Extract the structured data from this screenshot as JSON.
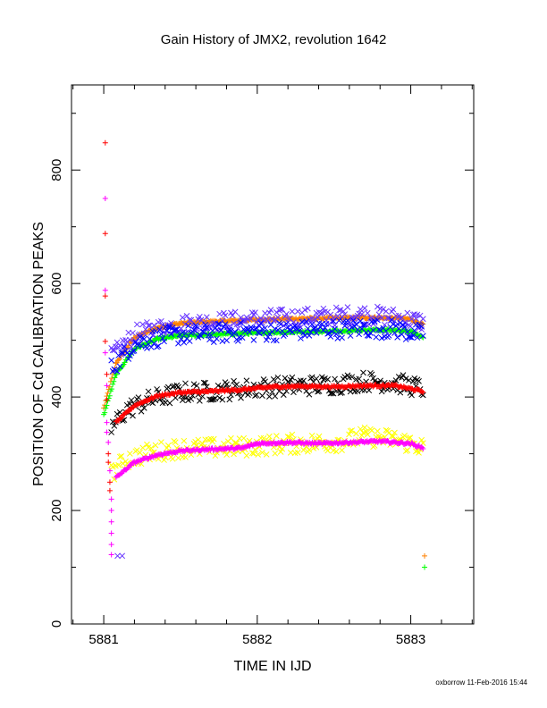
{
  "chart_data": {
    "type": "scatter",
    "title": "Gain History of JMX2, revolution 1642",
    "xlabel": "TIME IN IJD",
    "ylabel": "POSITION OF Cd CALIBRATION PEAKS",
    "xlim": [
      5880.79,
      5883.41
    ],
    "ylim": [
      0,
      950
    ],
    "x_ticks": [
      "5881",
      "5882",
      "5883"
    ],
    "y_ticks": [
      "0",
      "200",
      "400",
      "600",
      "800"
    ],
    "grid": false,
    "credit": "oxborrow 11-Feb-2016 15:44",
    "series": [
      {
        "color": "#ff8000",
        "marker": "+",
        "x": [
          5881.0,
          5881.08,
          5881.2,
          5881.35,
          5881.5,
          5881.7,
          5881.9,
          5882.1,
          5882.3,
          5882.5,
          5882.7,
          5882.9,
          5883.0,
          5883.08
        ],
        "y": [
          380,
          460,
          505,
          522,
          530,
          533,
          535,
          537,
          538,
          539,
          540,
          539,
          537,
          528
        ]
      },
      {
        "color": "#6633ff",
        "marker": "x",
        "x": [
          5881.05,
          5881.2,
          5881.35,
          5881.5,
          5881.7,
          5881.9,
          5882.1,
          5882.3,
          5882.5,
          5882.7,
          5882.9,
          5883.08
        ],
        "y": [
          470,
          510,
          520,
          528,
          532,
          535,
          538,
          540,
          542,
          545,
          540,
          532
        ]
      },
      {
        "color": "#00ff00",
        "marker": "+",
        "x": [
          5881.0,
          5881.08,
          5881.2,
          5881.35,
          5881.5,
          5881.7,
          5881.9,
          5882.1,
          5882.3,
          5882.5,
          5882.7,
          5882.9,
          5883.0,
          5883.08
        ],
        "y": [
          368,
          440,
          485,
          502,
          508,
          510,
          512,
          514,
          515,
          516,
          518,
          518,
          515,
          505
        ]
      },
      {
        "color": "#0000ff",
        "marker": "x",
        "x": [
          5881.05,
          5881.2,
          5881.35,
          5881.5,
          5881.7,
          5881.9,
          5882.1,
          5882.3,
          5882.5,
          5882.7,
          5882.9,
          5883.08
        ],
        "y": [
          450,
          495,
          505,
          510,
          512,
          515,
          516,
          518,
          520,
          522,
          520,
          510
        ]
      },
      {
        "color": "#000000",
        "marker": "x",
        "x": [
          5881.05,
          5881.15,
          5881.3,
          5881.5,
          5881.7,
          5881.9,
          5882.1,
          5882.3,
          5882.5,
          5882.7,
          5882.9,
          5883.08
        ],
        "y": [
          345,
          378,
          395,
          408,
          410,
          414,
          418,
          420,
          422,
          428,
          425,
          415
        ]
      },
      {
        "color": "#ff0000",
        "marker": "+",
        "x": [
          5881.08,
          5881.2,
          5881.35,
          5881.5,
          5881.7,
          5881.9,
          5882.1,
          5882.3,
          5882.5,
          5882.7,
          5882.9,
          5883.08
        ],
        "y": [
          355,
          385,
          402,
          408,
          410,
          413,
          418,
          419,
          418,
          420,
          420,
          410
        ]
      },
      {
        "color": "#ffff00",
        "marker": "x",
        "x": [
          5881.05,
          5881.15,
          5881.3,
          5881.5,
          5881.7,
          5881.9,
          5882.1,
          5882.3,
          5882.5,
          5882.7,
          5882.9,
          5883.08
        ],
        "y": [
          265,
          290,
          302,
          310,
          310,
          312,
          316,
          318,
          320,
          330,
          325,
          312
        ]
      },
      {
        "color": "#ff00ff",
        "marker": "+",
        "x": [
          5881.08,
          5881.2,
          5881.35,
          5881.5,
          5881.7,
          5881.9,
          5882.0,
          5882.2,
          5882.4,
          5882.6,
          5882.8,
          5883.0,
          5883.08
        ],
        "y": [
          258,
          285,
          298,
          305,
          308,
          310,
          318,
          320,
          318,
          320,
          322,
          318,
          310
        ]
      }
    ],
    "extra_points": [
      {
        "color": "#ff0000",
        "marker": "+",
        "x": 5881.01,
        "y": 848
      },
      {
        "color": "#ff00ff",
        "marker": "+",
        "x": 5881.01,
        "y": 750
      },
      {
        "color": "#ff0000",
        "marker": "+",
        "x": 5881.01,
        "y": 688
      },
      {
        "color": "#ff00ff",
        "marker": "+",
        "x": 5881.01,
        "y": 588
      },
      {
        "color": "#ff0000",
        "marker": "+",
        "x": 5881.01,
        "y": 578
      },
      {
        "color": "#ff0000",
        "marker": "+",
        "x": 5881.01,
        "y": 498
      },
      {
        "color": "#ff00ff",
        "marker": "+",
        "x": 5881.01,
        "y": 478
      },
      {
        "color": "#ff0000",
        "marker": "+",
        "x": 5881.02,
        "y": 440
      },
      {
        "color": "#ff00ff",
        "marker": "+",
        "x": 5881.02,
        "y": 420
      },
      {
        "color": "#ff0000",
        "marker": "+",
        "x": 5881.02,
        "y": 395
      },
      {
        "color": "#ff00ff",
        "marker": "+",
        "x": 5881.02,
        "y": 355
      },
      {
        "color": "#ff00ff",
        "marker": "+",
        "x": 5881.02,
        "y": 338
      },
      {
        "color": "#ff00ff",
        "marker": "+",
        "x": 5881.03,
        "y": 320
      },
      {
        "color": "#ff0000",
        "marker": "+",
        "x": 5881.03,
        "y": 300
      },
      {
        "color": "#ff0000",
        "marker": "+",
        "x": 5881.03,
        "y": 285
      },
      {
        "color": "#ff00ff",
        "marker": "+",
        "x": 5881.04,
        "y": 270
      },
      {
        "color": "#ff0000",
        "marker": "+",
        "x": 5881.04,
        "y": 250
      },
      {
        "color": "#ff0000",
        "marker": "+",
        "x": 5881.04,
        "y": 235
      },
      {
        "color": "#ff00ff",
        "marker": "+",
        "x": 5881.05,
        "y": 220
      },
      {
        "color": "#ff00ff",
        "marker": "+",
        "x": 5881.05,
        "y": 200
      },
      {
        "color": "#ff00ff",
        "marker": "+",
        "x": 5881.05,
        "y": 180
      },
      {
        "color": "#ff00ff",
        "marker": "+",
        "x": 5881.05,
        "y": 160
      },
      {
        "color": "#ff00ff",
        "marker": "+",
        "x": 5881.05,
        "y": 140
      },
      {
        "color": "#ff00ff",
        "marker": "+",
        "x": 5881.05,
        "y": 122
      },
      {
        "color": "#6633ff",
        "marker": "x",
        "x": 5881.09,
        "y": 120
      },
      {
        "color": "#6633ff",
        "marker": "x",
        "x": 5881.12,
        "y": 120
      },
      {
        "color": "#ff8000",
        "marker": "+",
        "x": 5883.09,
        "y": 120
      },
      {
        "color": "#00ff00",
        "marker": "+",
        "x": 5883.09,
        "y": 100
      }
    ]
  }
}
